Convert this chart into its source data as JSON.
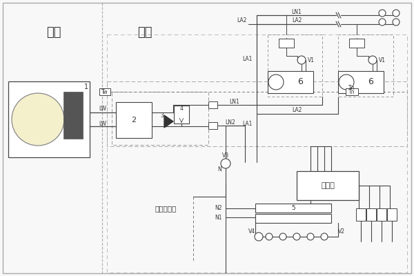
{
  "bg": "#f8f8f8",
  "lc": "#444444",
  "dc": "#777777",
  "outdoor_label": "室外",
  "indoor_label": "室内",
  "water_label": "白来水补水",
  "controller_label": "控制器",
  "fig_w": 6.0,
  "fig_h": 4.0,
  "dpi": 100
}
